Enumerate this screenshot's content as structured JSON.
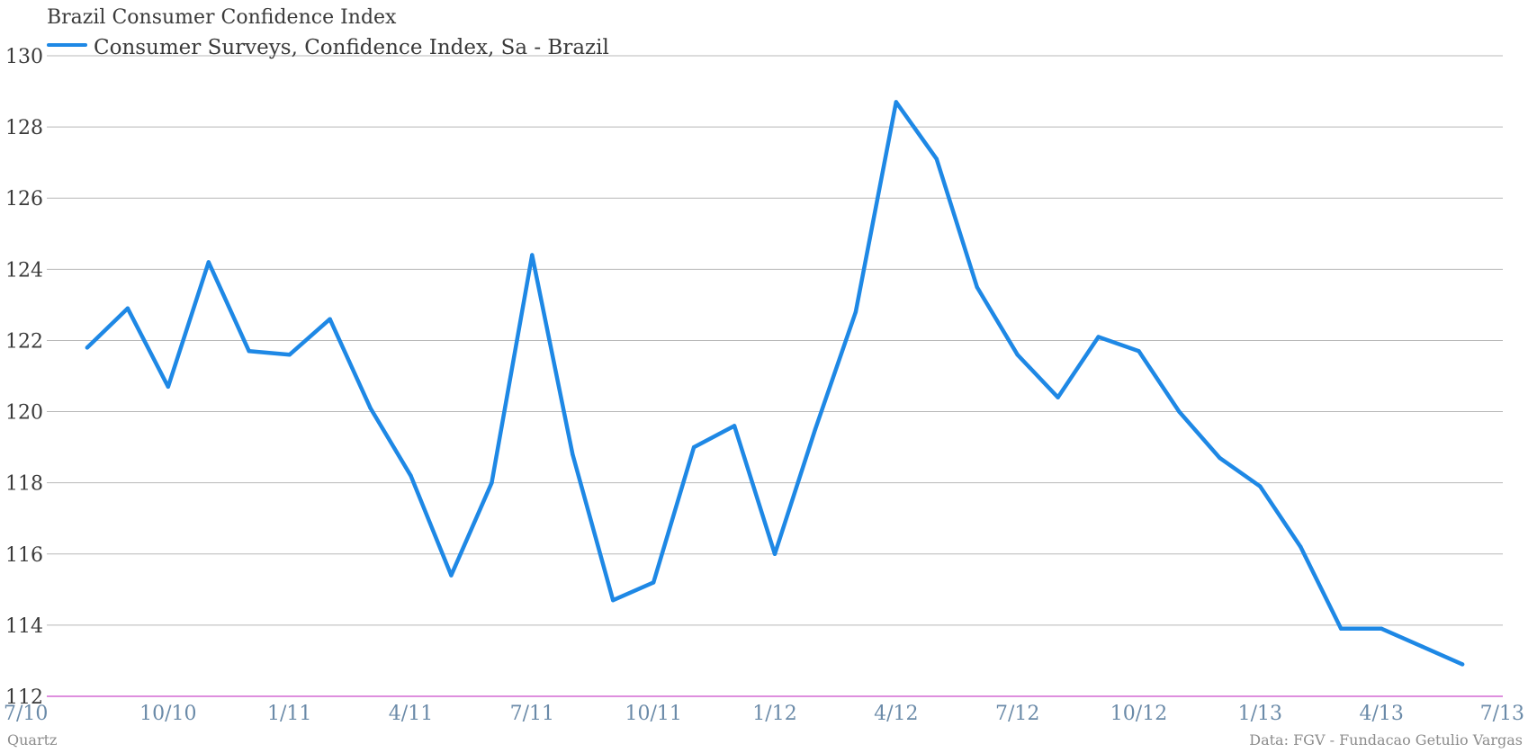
{
  "chart_data": {
    "type": "line",
    "title": "Brazil Consumer Confidence Index",
    "xlabel": "",
    "ylabel": "",
    "ylim": [
      112,
      130
    ],
    "yticks": [
      112,
      114,
      116,
      118,
      120,
      122,
      124,
      126,
      128,
      130
    ],
    "xlim": [
      "2010-07",
      "2013-07"
    ],
    "xticks": [
      {
        "label": "7/10",
        "date": "2010-07"
      },
      {
        "label": "10/10",
        "date": "2010-10"
      },
      {
        "label": "1/11",
        "date": "2011-01"
      },
      {
        "label": "4/11",
        "date": "2011-04"
      },
      {
        "label": "7/11",
        "date": "2011-07"
      },
      {
        "label": "10/11",
        "date": "2011-10"
      },
      {
        "label": "1/12",
        "date": "2012-01"
      },
      {
        "label": "4/12",
        "date": "2012-04"
      },
      {
        "label": "7/12",
        "date": "2012-07"
      },
      {
        "label": "10/12",
        "date": "2012-10"
      },
      {
        "label": "1/13",
        "date": "2013-01"
      },
      {
        "label": "4/13",
        "date": "2013-04"
      },
      {
        "label": "7/13",
        "date": "2013-07"
      }
    ],
    "grid": true,
    "legend_position": "top-left",
    "series": [
      {
        "name": "Consumer Surveys, Confidence Index, Sa - Brazil",
        "color": "#1e88e5",
        "x": [
          "2010-08",
          "2010-09",
          "2010-10",
          "2010-11",
          "2010-12",
          "2011-01",
          "2011-02",
          "2011-03",
          "2011-04",
          "2011-05",
          "2011-06",
          "2011-07",
          "2011-08",
          "2011-09",
          "2011-10",
          "2011-11",
          "2011-12",
          "2012-01",
          "2012-02",
          "2012-03",
          "2012-04",
          "2012-05",
          "2012-06",
          "2012-07",
          "2012-08",
          "2012-09",
          "2012-10",
          "2012-11",
          "2012-12",
          "2013-01",
          "2013-02",
          "2013-03",
          "2013-04",
          "2013-05",
          "2013-06"
        ],
        "values": [
          121.8,
          122.9,
          120.7,
          124.2,
          121.7,
          121.6,
          122.6,
          120.1,
          118.2,
          115.4,
          118.0,
          124.4,
          118.8,
          114.7,
          115.2,
          119.0,
          119.6,
          116.0,
          119.5,
          122.8,
          128.7,
          127.1,
          123.5,
          121.6,
          120.4,
          122.1,
          121.7,
          120.0,
          118.7,
          117.9,
          116.2,
          113.9,
          113.9,
          113.4,
          112.9
        ]
      }
    ]
  },
  "footer": {
    "source_left": "Quartz",
    "source_right": "Data: FGV - Fundacao Getulio Vargas"
  }
}
